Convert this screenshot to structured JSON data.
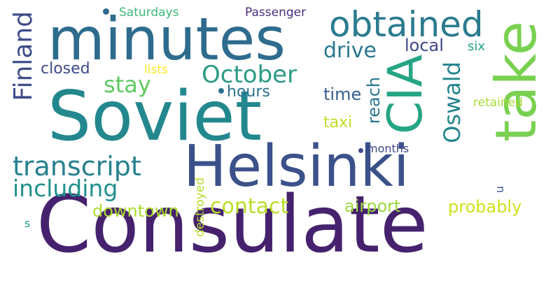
{
  "image": {
    "background": "#ffffff",
    "palette": "viridis"
  },
  "words": [
    {
      "key": "consulate",
      "text": "Consulate",
      "color": "#46226e"
    },
    {
      "key": "soviet",
      "text": "Soviet",
      "color": "#23888e"
    },
    {
      "key": "helsinki",
      "text": "Helsinki",
      "color": "#3b518a"
    },
    {
      "key": "minutes",
      "text": "minutes",
      "color": "#2e6c8e"
    },
    {
      "key": "take",
      "text": "take",
      "color": "#7ad151",
      "orientation": "vertical"
    },
    {
      "key": "cia",
      "text": "CIA",
      "color": "#25a584",
      "orientation": "vertical"
    },
    {
      "key": "obtained",
      "text": "obtained",
      "color": "#2b7b8e"
    },
    {
      "key": "october",
      "text": "October",
      "color": "#2c9a86"
    },
    {
      "key": "transcript",
      "text": "transcript",
      "color": "#26808e"
    },
    {
      "key": "including",
      "text": "including",
      "color": "#21918c"
    },
    {
      "key": "finland",
      "text": "Finland",
      "color": "#3f4d8a",
      "orientation": "vertical"
    },
    {
      "key": "oswald",
      "text": "Oswald",
      "color": "#25858e",
      "orientation": "vertical"
    },
    {
      "key": "drive",
      "text": "drive",
      "color": "#2a788e"
    },
    {
      "key": "stay",
      "text": "stay",
      "color": "#5ec962"
    },
    {
      "key": "contact",
      "text": "contact",
      "color": "#b8de29"
    },
    {
      "key": "airport",
      "text": "airport",
      "color": "#9bd93c"
    },
    {
      "key": "probably",
      "text": "probably",
      "color": "#d0e11c"
    },
    {
      "key": "downtown",
      "text": "downtown",
      "color": "#addc30"
    },
    {
      "key": "closed",
      "text": "closed",
      "color": "#3e4a89"
    },
    {
      "key": "hours",
      "text": "hours",
      "color": "#2c728e"
    },
    {
      "key": "time",
      "text": "time",
      "color": "#355f8d"
    },
    {
      "key": "taxi",
      "text": "taxi",
      "color": "#bddf26"
    },
    {
      "key": "reach",
      "text": "reach",
      "color": "#2a768e",
      "orientation": "vertical"
    },
    {
      "key": "local",
      "text": "local",
      "color": "#3f4889"
    },
    {
      "key": "six",
      "text": "six",
      "color": "#20a386"
    },
    {
      "key": "lists",
      "text": "lists",
      "color": "#fde725"
    },
    {
      "key": "saturdays",
      "text": "Saturdays",
      "color": "#3aba76"
    },
    {
      "key": "passenger",
      "text": "Passenger",
      "color": "#472f7d"
    },
    {
      "key": "retained",
      "text": "retained",
      "color": "#a8db34"
    },
    {
      "key": "months",
      "text": "months",
      "color": "#3e4989"
    },
    {
      "key": "destroyed",
      "text": "destroyed",
      "color": "#b5de2b",
      "orientation": "vertical"
    },
    {
      "key": "u",
      "text": "u",
      "color": "#38588c",
      "orientation": "vertical"
    },
    {
      "key": "s",
      "text": "s",
      "color": "#1fa088"
    }
  ]
}
